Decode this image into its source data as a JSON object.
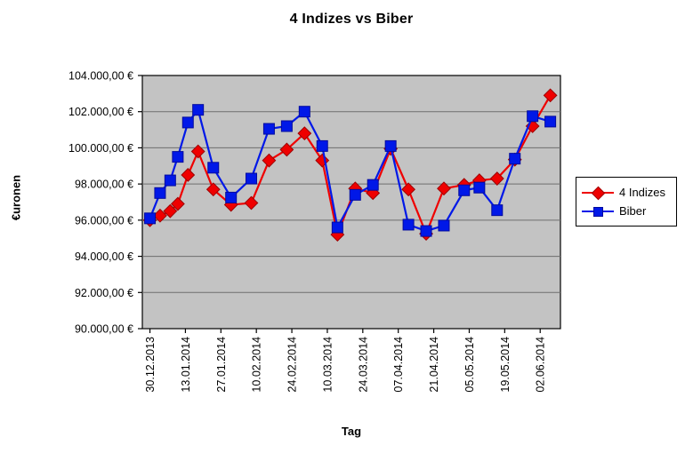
{
  "chart_data": {
    "type": "line",
    "title": "4 Indizes vs Biber",
    "xlabel": "Tag",
    "ylabel": "€uronen",
    "grid": true,
    "legend_position": "right",
    "plot_bg_color": "#c3c3c3",
    "grid_color": "#6e6e6e",
    "axis_color": "#000000",
    "ylim": [
      90000,
      104000
    ],
    "y_tick_step": 2000,
    "y_tick_labels_top_to_bottom": [
      "104.000,00 €",
      "102.000,00 €",
      "100.000,00 €",
      "98.000,00 €",
      "96.000,00 €",
      "94.000,00 €",
      "92.000,00 €",
      "90.000,00 €"
    ],
    "x_axis_note": "date axis, ticks every 14 days, data sampled irregularly (denser at start)",
    "xlim_days": [
      -3,
      162
    ],
    "x_ticks": [
      {
        "day": 0,
        "label": "30.12.2013"
      },
      {
        "day": 14,
        "label": "13.01.2014"
      },
      {
        "day": 28,
        "label": "27.01.2014"
      },
      {
        "day": 42,
        "label": "10.02.2014"
      },
      {
        "day": 56,
        "label": "24.02.2014"
      },
      {
        "day": 70,
        "label": "10.03.2014"
      },
      {
        "day": 84,
        "label": "24.03.2014"
      },
      {
        "day": 98,
        "label": "07.04.2014"
      },
      {
        "day": 112,
        "label": "21.04.2014"
      },
      {
        "day": 126,
        "label": "05.05.2014"
      },
      {
        "day": 140,
        "label": "19.05.2014"
      },
      {
        "day": 154,
        "label": "02.06.2014"
      }
    ],
    "x_days": [
      0,
      4,
      8,
      11,
      15,
      19,
      25,
      32,
      40,
      47,
      54,
      61,
      68,
      74,
      81,
      88,
      95,
      102,
      109,
      116,
      124,
      130,
      137,
      144,
      151,
      158
    ],
    "series": [
      {
        "name": "4 Indizes",
        "marker": "diamond",
        "color": "#ef0000",
        "marker_edge": "#9e0000",
        "values": [
          96000,
          96250,
          96500,
          96900,
          98500,
          99800,
          97700,
          96850,
          96950,
          99300,
          99900,
          100800,
          99300,
          95200,
          97750,
          97500,
          99950,
          97700,
          95250,
          97750,
          97950,
          98200,
          98300,
          99350,
          101200,
          102900
        ]
      },
      {
        "name": "Biber",
        "marker": "square",
        "color": "#0018e8",
        "marker_edge": "#000a9e",
        "values": [
          96100,
          97500,
          98200,
          99500,
          101400,
          102100,
          98900,
          97250,
          98300,
          101050,
          101200,
          102000,
          100100,
          95600,
          97400,
          97950,
          100100,
          95750,
          95400,
          95700,
          97650,
          97800,
          96550,
          99400,
          101750,
          101450
        ]
      }
    ]
  }
}
